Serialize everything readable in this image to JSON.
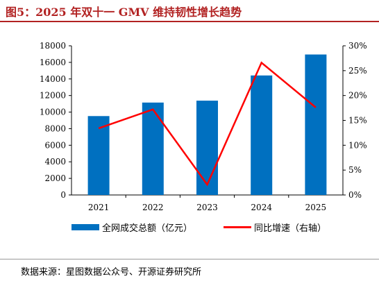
{
  "figure_title": "图5：2025 年双十一 GMV 维持韧性增长趋势",
  "source_note": "数据来源：星图数据公众号、开源证券研究所",
  "colors": {
    "bar": "#0070c0",
    "line": "#ff0000",
    "title": "#b22222"
  },
  "chart_data": {
    "type": "bar",
    "title": "",
    "categories": [
      "2021",
      "2022",
      "2023",
      "2024",
      "2025"
    ],
    "series": [
      {
        "name": "全网成交总额（亿元）",
        "type": "bar",
        "axis": "left",
        "values": [
          9520,
          11150,
          11380,
          14420,
          16950
        ]
      },
      {
        "name": "同比增速（右轴）",
        "type": "line",
        "axis": "right",
        "values": [
          13.4,
          17.2,
          2.1,
          26.6,
          17.6
        ]
      }
    ],
    "y_left": {
      "min": 0,
      "max": 18000,
      "step": 2000,
      "ticks": [
        "0",
        "2000",
        "4000",
        "6000",
        "8000",
        "10000",
        "12000",
        "14000",
        "16000",
        "18000"
      ]
    },
    "y_right": {
      "min": 0,
      "max": 30,
      "step": 5,
      "ticks": [
        "0%",
        "5%",
        "10%",
        "15%",
        "20%",
        "25%",
        "30%"
      ]
    },
    "grid": false,
    "legend_position": "bottom"
  }
}
